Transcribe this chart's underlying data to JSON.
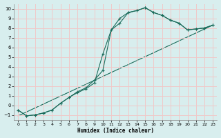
{
  "title": "",
  "xlabel": "Humidex (Indice chaleur)",
  "ylabel": "",
  "bg_color": "#d8eeee",
  "line_color": "#1a6b5a",
  "grid_color": "#f0c8c8",
  "xlim": [
    -0.5,
    23.5
  ],
  "ylim": [
    -1.5,
    10.5
  ],
  "xticks": [
    0,
    1,
    2,
    3,
    4,
    5,
    6,
    7,
    8,
    9,
    10,
    11,
    12,
    13,
    14,
    15,
    16,
    17,
    18,
    19,
    20,
    21,
    22,
    23
  ],
  "yticks": [
    -1,
    0,
    1,
    2,
    3,
    4,
    5,
    6,
    7,
    8,
    9,
    10
  ],
  "line1_x": [
    0,
    1,
    2,
    3,
    4,
    5,
    6,
    7,
    8,
    9,
    10,
    11,
    12,
    13,
    14,
    15,
    16,
    17,
    18,
    19,
    20,
    21,
    22,
    23
  ],
  "line1_y": [
    -0.5,
    -1.1,
    -1.0,
    -0.8,
    -0.5,
    0.2,
    0.8,
    1.4,
    1.8,
    2.6,
    3.6,
    7.8,
    9.0,
    9.6,
    9.8,
    10.1,
    9.6,
    9.3,
    8.8,
    8.5,
    7.8,
    7.9,
    8.0,
    8.3
  ],
  "line2_x": [
    0,
    1,
    2,
    3,
    4,
    5,
    6,
    7,
    8,
    9,
    10,
    11,
    12,
    13,
    14,
    15,
    16,
    17,
    18,
    19,
    20,
    21,
    22,
    23
  ],
  "line2_y": [
    -0.5,
    -1.1,
    -1.0,
    -0.8,
    -0.5,
    0.2,
    0.8,
    1.3,
    1.7,
    2.3,
    5.3,
    7.8,
    8.5,
    9.6,
    9.8,
    10.1,
    9.6,
    9.3,
    8.8,
    8.5,
    7.8,
    7.9,
    8.0,
    8.3
  ],
  "line3_x": [
    0,
    23
  ],
  "line3_y": [
    -1.1,
    8.3
  ],
  "figsize": [
    3.2,
    2.0
  ],
  "dpi": 100
}
